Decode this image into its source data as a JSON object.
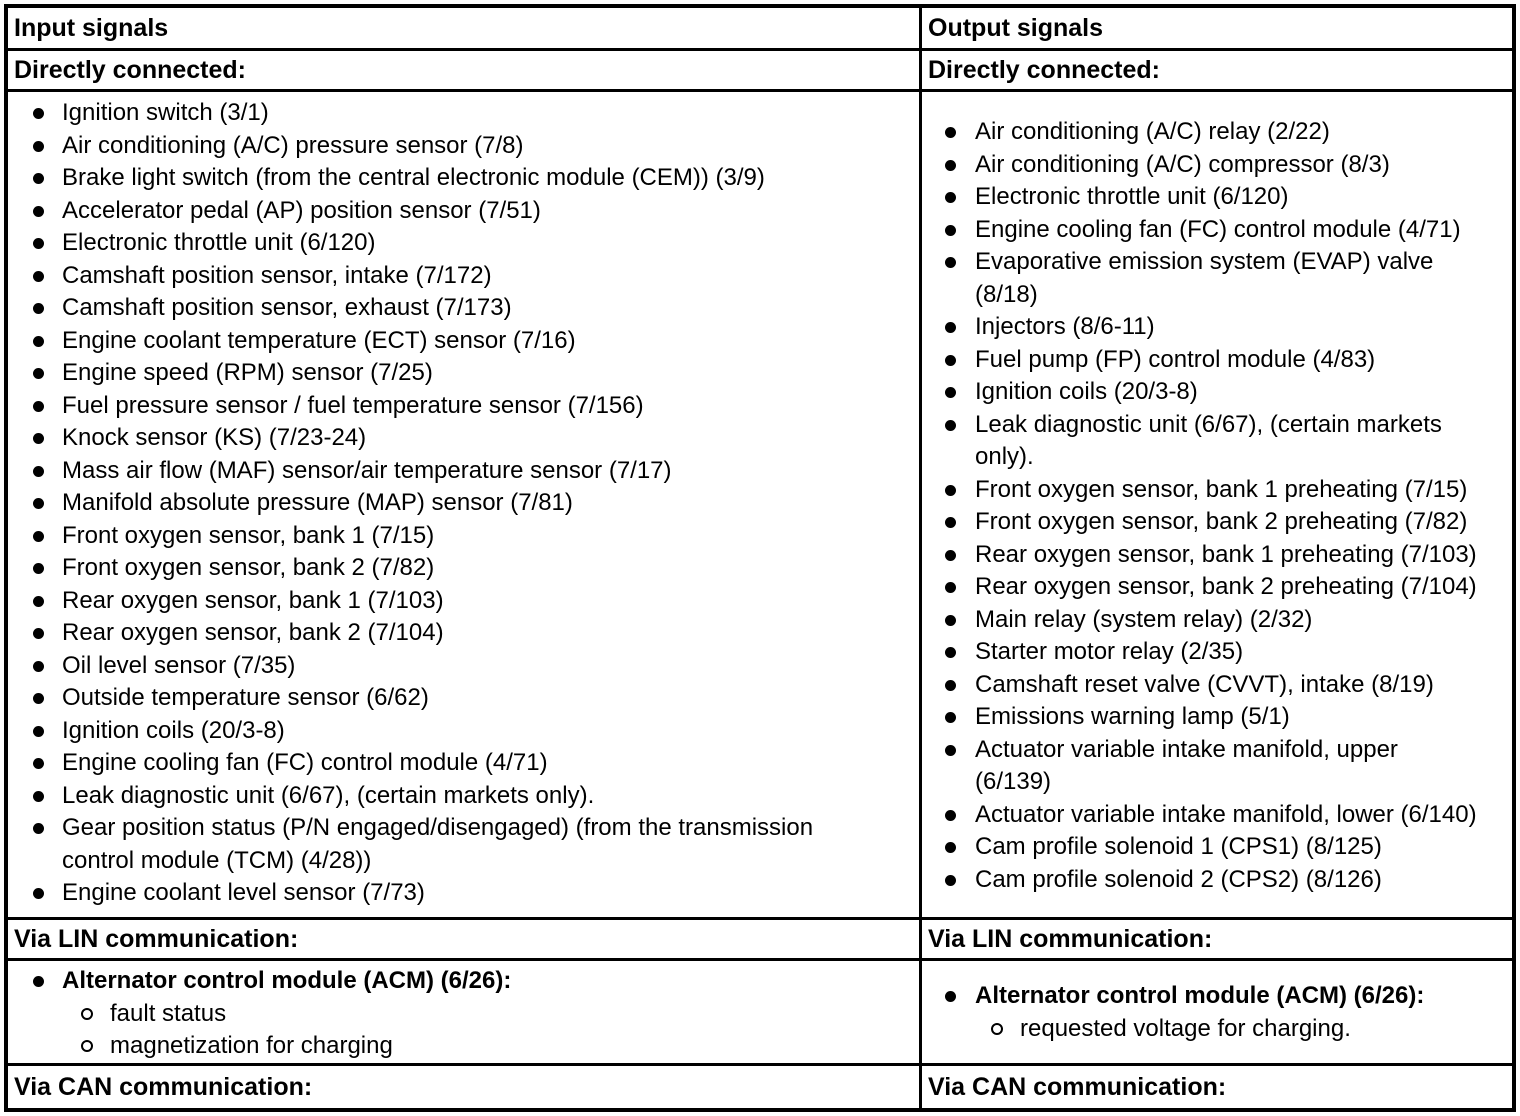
{
  "page": {
    "background_color": "#ffffff",
    "text_color": "#000000",
    "border_color": "#000000"
  },
  "table": {
    "columns": [
      {
        "header": "Input signals",
        "sections": [
          {
            "title": "Directly connected:",
            "items": [
              {
                "text": "Ignition switch (3/1)"
              },
              {
                "text": "Air conditioning (A/C) pressure sensor (7/8)"
              },
              {
                "text": "Brake light switch (from the central electronic module (CEM)) (3/9)"
              },
              {
                "text": "Accelerator pedal (AP) position sensor (7/51)"
              },
              {
                "text": "Electronic throttle unit (6/120)"
              },
              {
                "text": "Camshaft position sensor, intake (7/172)"
              },
              {
                "text": "Camshaft position sensor, exhaust (7/173)"
              },
              {
                "text": "Engine coolant temperature (ECT) sensor (7/16)"
              },
              {
                "text": "Engine speed (RPM) sensor (7/25)"
              },
              {
                "text": "Fuel pressure sensor / fuel temperature sensor (7/156)"
              },
              {
                "text": "Knock sensor (KS) (7/23-24)"
              },
              {
                "text": "Mass air flow (MAF) sensor/air temperature sensor (7/17)"
              },
              {
                "text": "Manifold absolute pressure (MAP) sensor (7/81)"
              },
              {
                "text": "Front oxygen sensor, bank 1 (7/15)"
              },
              {
                "text": "Front oxygen sensor, bank 2 (7/82)"
              },
              {
                "text": "Rear oxygen sensor, bank 1 (7/103)"
              },
              {
                "text": "Rear oxygen sensor, bank 2 (7/104)"
              },
              {
                "text": "Oil level sensor (7/35)"
              },
              {
                "text": "Outside temperature sensor (6/62)"
              },
              {
                "text": "Ignition coils (20/3-8)"
              },
              {
                "text": "Engine cooling fan (FC) control module (4/71)"
              },
              {
                "text": "Leak diagnostic unit (6/67), (certain markets only)."
              },
              {
                "text": "Gear position status (P/N engaged/disengaged) (from the transmission\ncontrol module (TCM) (4/28))"
              },
              {
                "text": "Engine coolant level sensor (7/73)"
              }
            ]
          },
          {
            "title": "Via LIN communication:",
            "items": [
              {
                "text": "Alternator control module (ACM) (6/26):",
                "bold": true
              },
              {
                "text": "fault status",
                "sub": true
              },
              {
                "text": "magnetization for charging",
                "sub": true
              }
            ]
          },
          {
            "title": "Via CAN communication:",
            "items": []
          }
        ]
      },
      {
        "header": "Output signals",
        "sections": [
          {
            "title": "Directly connected:",
            "items": [
              {
                "text": "Air conditioning (A/C) relay (2/22)"
              },
              {
                "text": "Air conditioning (A/C) compressor (8/3)"
              },
              {
                "text": "Electronic throttle unit (6/120)"
              },
              {
                "text": "Engine cooling fan (FC) control module (4/71)"
              },
              {
                "text": "Evaporative emission system (EVAP) valve\n(8/18)"
              },
              {
                "text": "Injectors (8/6-11)"
              },
              {
                "text": "Fuel pump (FP) control module (4/83)"
              },
              {
                "text": "Ignition coils (20/3-8)"
              },
              {
                "text": "Leak diagnostic unit (6/67), (certain markets\nonly)."
              },
              {
                "text": "Front oxygen sensor, bank 1 preheating (7/15)"
              },
              {
                "text": "Front oxygen sensor, bank 2 preheating (7/82)"
              },
              {
                "text": "Rear oxygen sensor, bank 1 preheating (7/103)"
              },
              {
                "text": "Rear oxygen sensor, bank 2 preheating (7/104)"
              },
              {
                "text": "Main relay (system relay) (2/32)"
              },
              {
                "text": "Starter motor relay (2/35)"
              },
              {
                "text": "Camshaft reset valve (CVVT), intake (8/19)"
              },
              {
                "text": "Emissions warning lamp (5/1)"
              },
              {
                "text": "Actuator variable intake manifold, upper\n(6/139)"
              },
              {
                "text": "Actuator variable intake manifold, lower (6/140)"
              },
              {
                "text": "Cam profile solenoid 1 (CPS1) (8/125)"
              },
              {
                "text": "Cam profile solenoid 2 (CPS2) (8/126)"
              }
            ]
          },
          {
            "title": "Via LIN communication:",
            "items": [
              {
                "text": "Alternator control module (ACM) (6/26):",
                "bold": true
              },
              {
                "text": "requested voltage for charging.",
                "sub": true
              }
            ]
          },
          {
            "title": "Via CAN communication:",
            "items": []
          }
        ]
      }
    ]
  }
}
